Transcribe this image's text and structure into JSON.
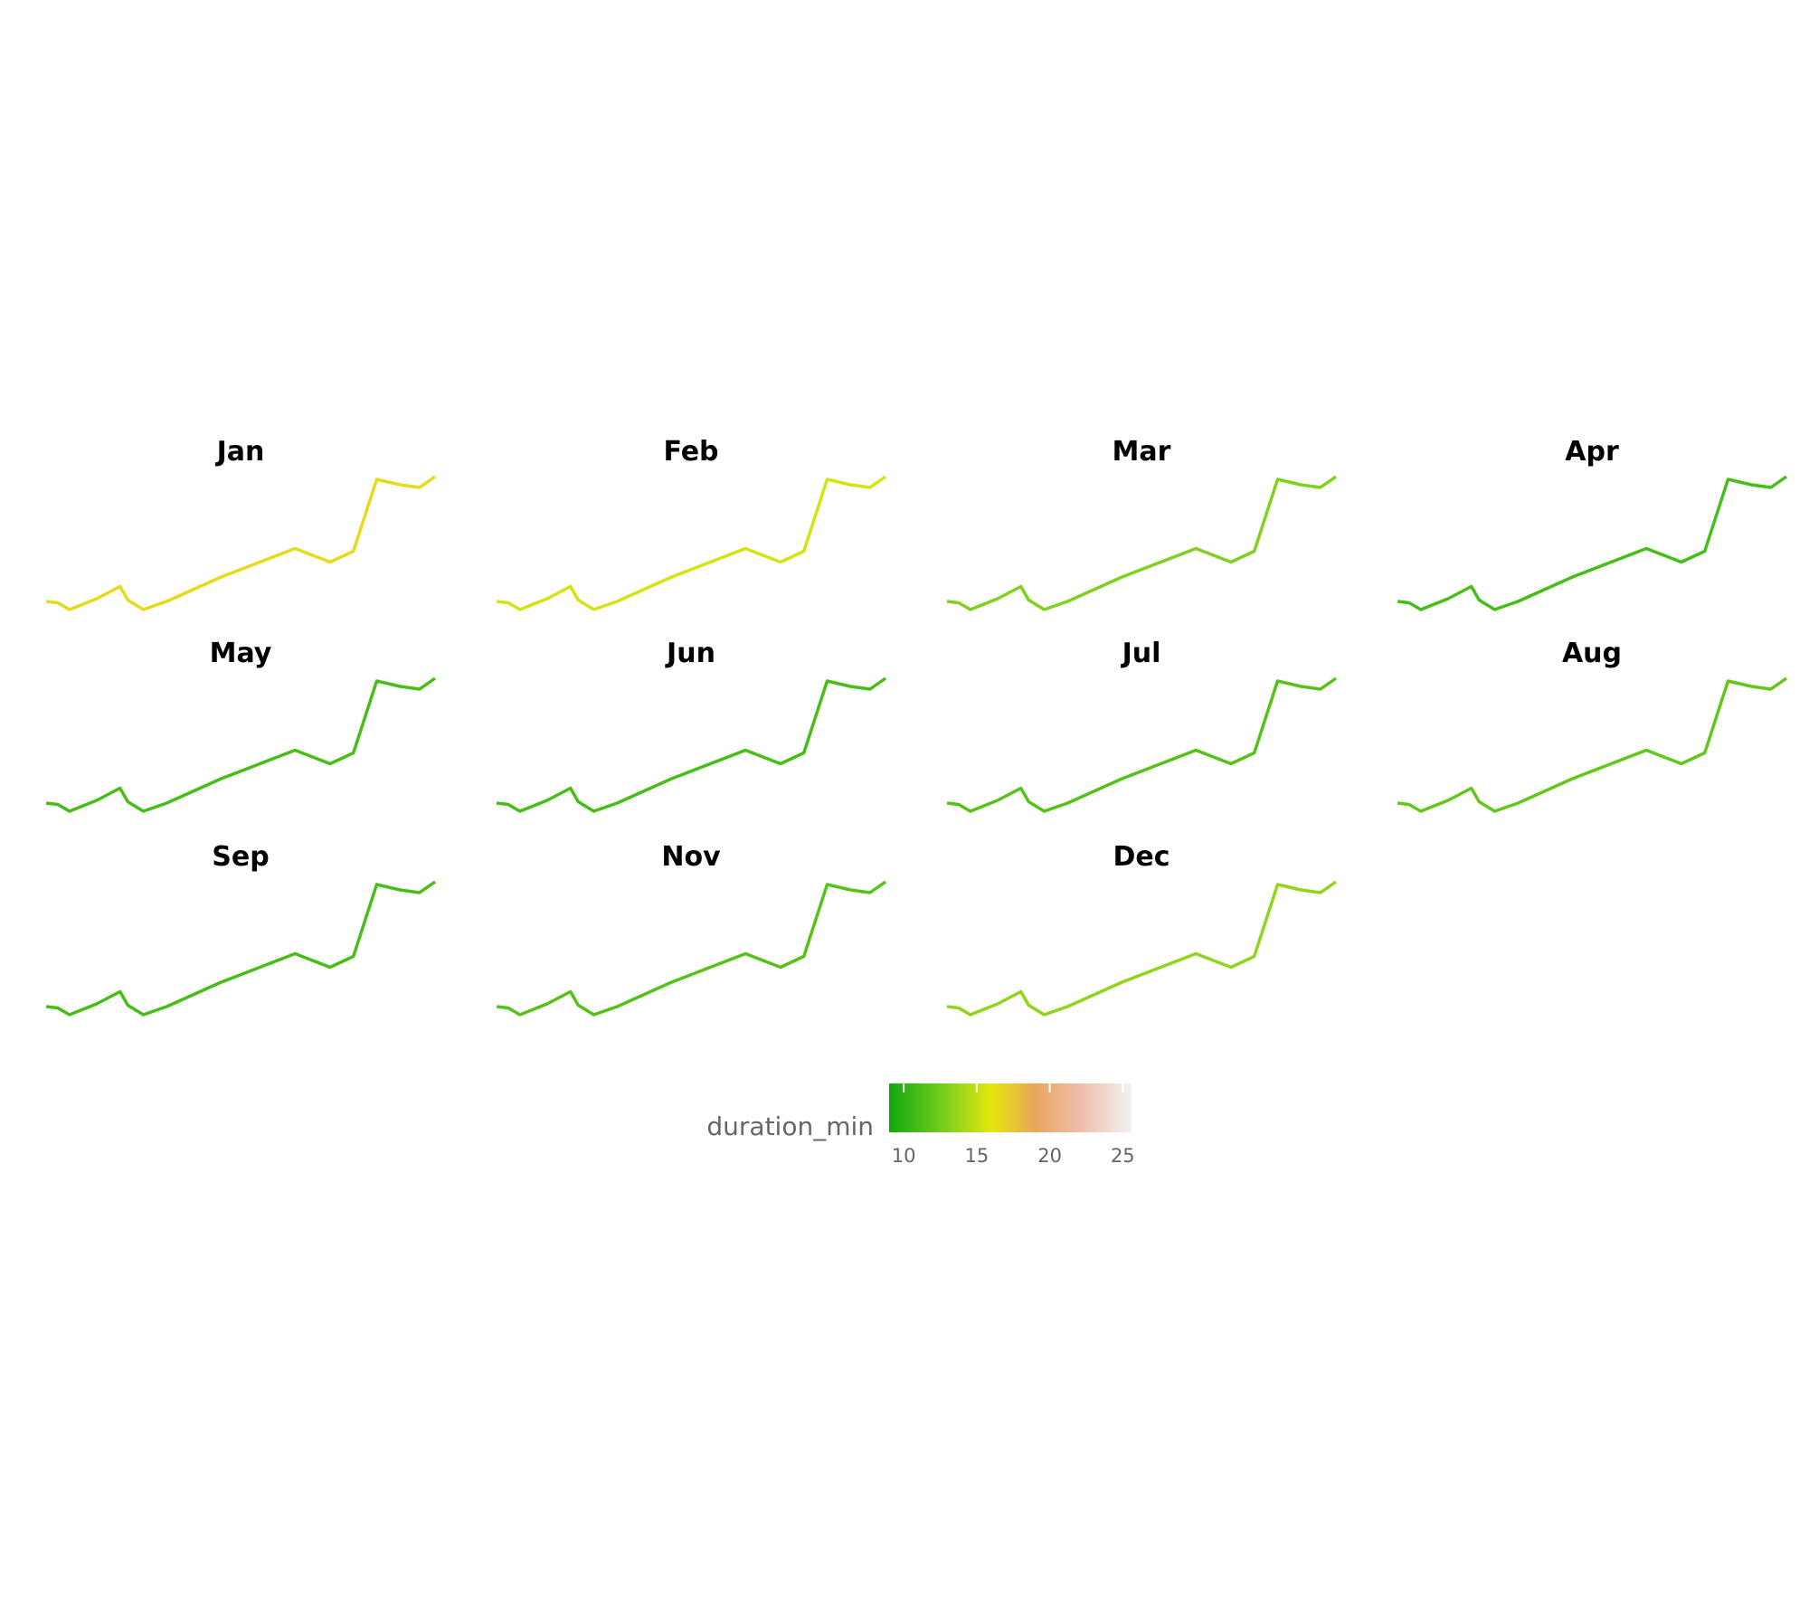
{
  "chart_data": {
    "type": "route-facets",
    "panels": [
      {
        "title": "Jan",
        "duration_min": 16.5
      },
      {
        "title": "Feb",
        "duration_min": 15.5
      },
      {
        "title": "Mar",
        "duration_min": 13
      },
      {
        "title": "Apr",
        "duration_min": 11
      },
      {
        "title": "May",
        "duration_min": 11
      },
      {
        "title": "Jun",
        "duration_min": 11
      },
      {
        "title": "Jul",
        "duration_min": 11.5
      },
      {
        "title": "Aug",
        "duration_min": 12
      },
      {
        "title": "Sep",
        "duration_min": 11
      },
      {
        "title": "Nov",
        "duration_min": 11.5
      },
      {
        "title": "Dec",
        "duration_min": 13.5
      }
    ],
    "colorbar": {
      "title": "duration_min",
      "lim": [
        9,
        25.6
      ],
      "ticks": [
        10,
        15,
        20,
        25
      ],
      "colorscale": [
        [
          9,
          "#0fa80f"
        ],
        [
          13,
          "#7fd11e"
        ],
        [
          16,
          "#e6e60c"
        ],
        [
          19,
          "#e8a65c"
        ],
        [
          22,
          "#f0bcaa"
        ],
        [
          25.6,
          "#f2f2f2"
        ]
      ]
    }
  }
}
